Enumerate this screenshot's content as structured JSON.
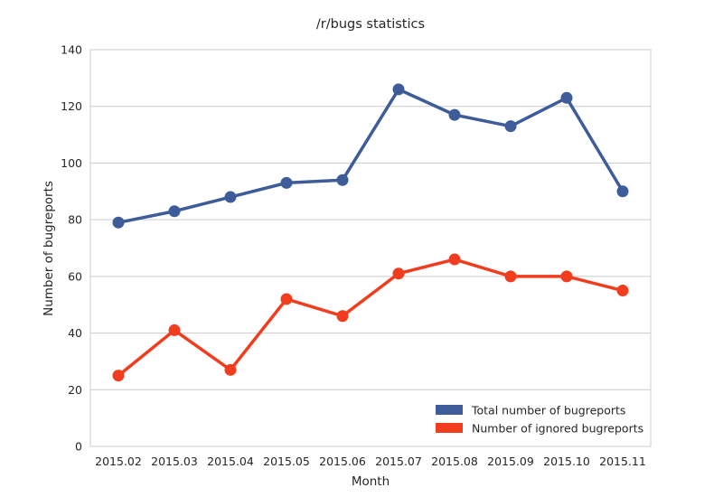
{
  "chart_data": {
    "type": "line",
    "title": "/r/bugs statistics",
    "xlabel": "Month",
    "ylabel": "Number of bugreports",
    "categories": [
      "2015.02",
      "2015.03",
      "2015.04",
      "2015.05",
      "2015.06",
      "2015.07",
      "2015.08",
      "2015.09",
      "2015.10",
      "2015.11"
    ],
    "ylim": [
      0,
      140
    ],
    "yticks": [
      "0",
      "20",
      "40",
      "60",
      "80",
      "100",
      "120",
      "140"
    ],
    "grid": true,
    "legend_position": "bottom-right",
    "series": [
      {
        "name": "Total number of bugreports",
        "color": "#3d5c99",
        "values": [
          79,
          83,
          88,
          93,
          94,
          126,
          117,
          113,
          123,
          90
        ]
      },
      {
        "name": "Number of ignored bugreports",
        "color": "#f23c1e",
        "values": [
          25,
          41,
          27,
          52,
          46,
          61,
          66,
          60,
          60,
          55
        ]
      }
    ]
  }
}
